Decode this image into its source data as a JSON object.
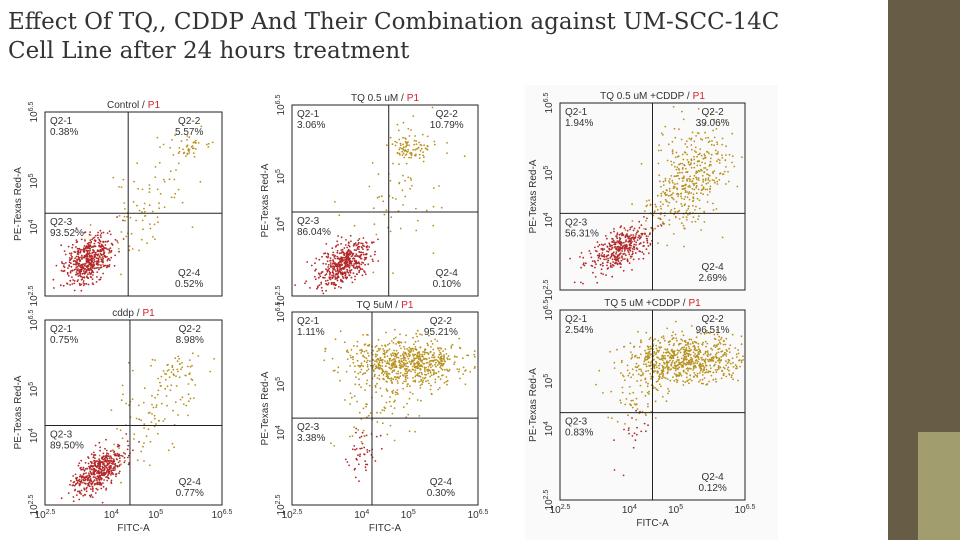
{
  "header": {
    "title_lines": [
      "Effect Of  TQ,, CDDP And Their Combination against  UM-SCC-14C",
      "Cell Line after 24 hours treatment"
    ]
  },
  "axes": {
    "x_label": "FITC-A",
    "y_label": "PE-Texas Red-A",
    "tick_base": "10",
    "tick_exponents": [
      "2.5",
      "4",
      "5",
      "6.5"
    ]
  },
  "panels": [
    {
      "title": "Control /",
      "gate": "P1",
      "quadrants": [
        {
          "name": "Q2-1",
          "percent": "0.38%"
        },
        {
          "name": "Q2-2",
          "percent": "5.57%"
        },
        {
          "name": "Q2-3",
          "percent": "93.52%"
        },
        {
          "name": "Q2-4",
          "percent": "0.52%"
        }
      ]
    },
    {
      "title": "TQ 0.5 uM /",
      "gate": "P1",
      "quadrants": [
        {
          "name": "Q2-1",
          "percent": "3.06%"
        },
        {
          "name": "Q2-2",
          "percent": "10.79%"
        },
        {
          "name": "Q2-3",
          "percent": "86.04%"
        },
        {
          "name": "Q2-4",
          "percent": "0.10%"
        }
      ]
    },
    {
      "title": "TQ 0.5 uM +CDDP /",
      "gate": "P1",
      "quadrants": [
        {
          "name": "Q2-1",
          "percent": "1.94%"
        },
        {
          "name": "Q2-2",
          "percent": "39.06%"
        },
        {
          "name": "Q2-3",
          "percent": "56.31%"
        },
        {
          "name": "Q2-4",
          "percent": "2.69%"
        }
      ]
    },
    {
      "title": "cddp /",
      "gate": "P1",
      "quadrants": [
        {
          "name": "Q2-1",
          "percent": "0.75%"
        },
        {
          "name": "Q2-2",
          "percent": "8.98%"
        },
        {
          "name": "Q2-3",
          "percent": "89.50%"
        },
        {
          "name": "Q2-4",
          "percent": "0.77%"
        }
      ]
    },
    {
      "title": "TQ 5uM /",
      "gate": "P1",
      "quadrants": [
        {
          "name": "Q2-1",
          "percent": "1.11%"
        },
        {
          "name": "Q2-2",
          "percent": "95.21%"
        },
        {
          "name": "Q2-3",
          "percent": "3.38%"
        },
        {
          "name": "Q2-4",
          "percent": "0.30%"
        }
      ]
    },
    {
      "title": "TQ 5 uM +CDDP /",
      "gate": "P1",
      "quadrants": [
        {
          "name": "Q2-1",
          "percent": "2.54%"
        },
        {
          "name": "Q2-2",
          "percent": "96.51%"
        },
        {
          "name": "Q2-3",
          "percent": "0.83%"
        },
        {
          "name": "Q2-4",
          "percent": "0.12%"
        }
      ]
    }
  ]
}
